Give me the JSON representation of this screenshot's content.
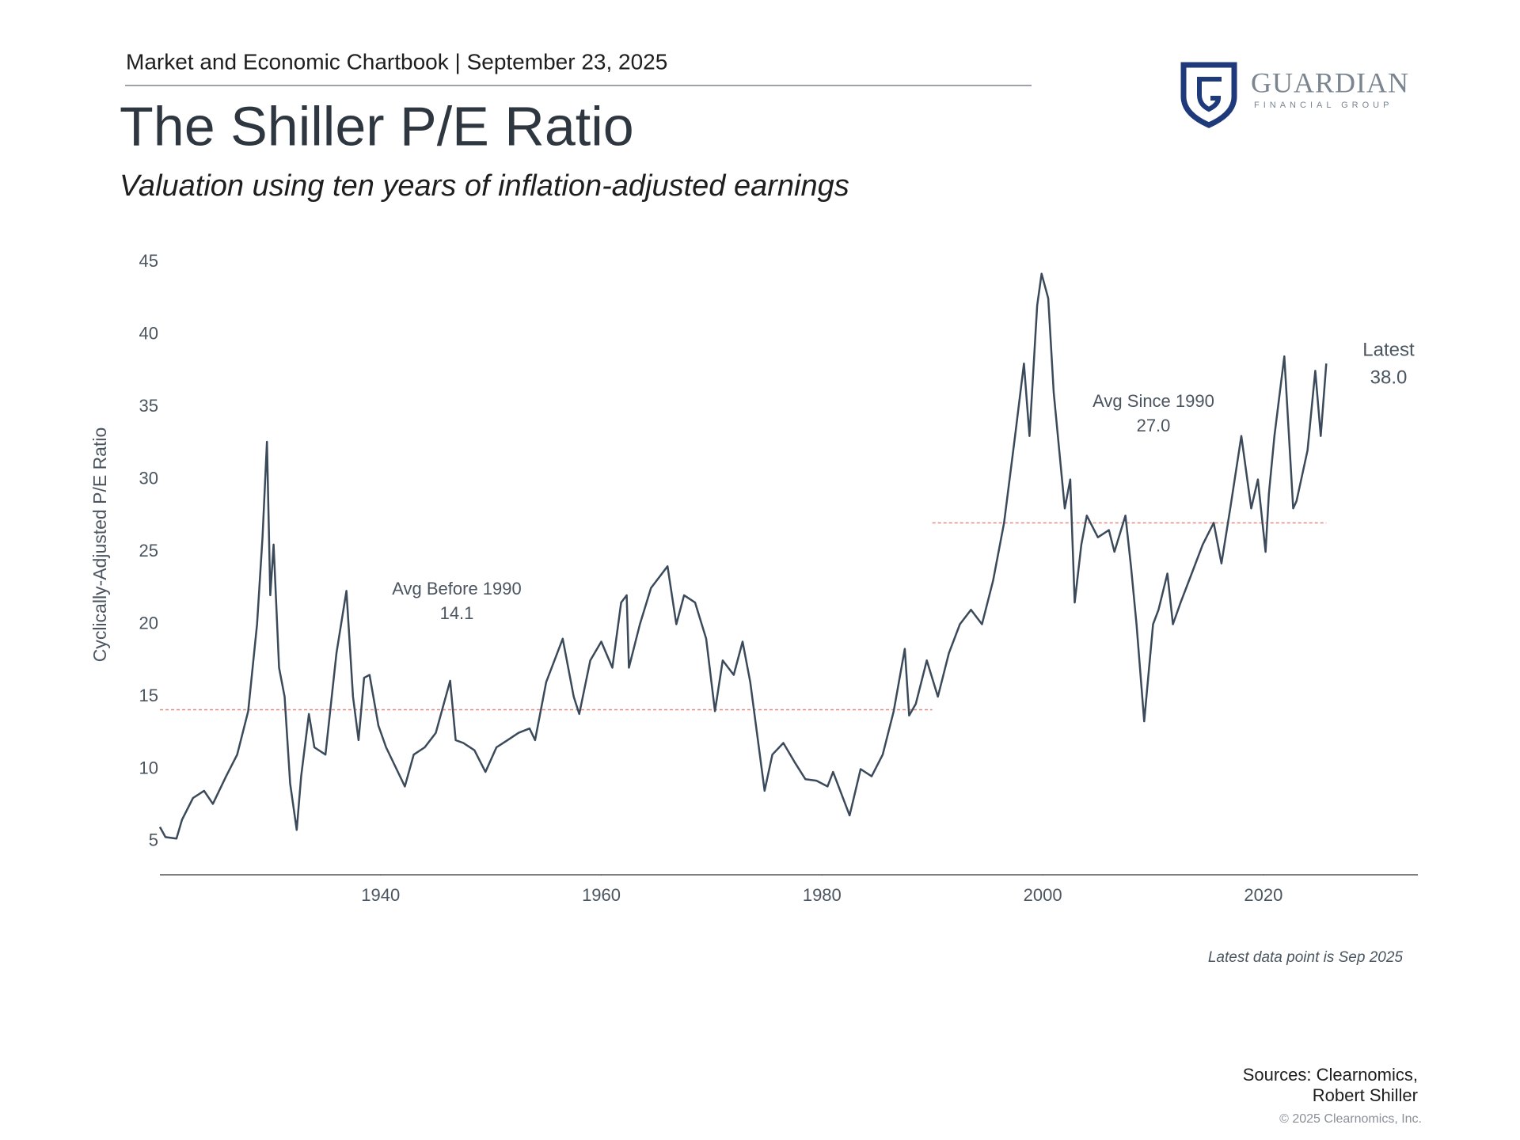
{
  "chart_data": {
    "type": "line",
    "header": "Market and Economic Chartbook | September 23, 2025",
    "title": "The Shiller P/E Ratio",
    "subtitle": "Valuation using ten years of inflation-adjusted earnings",
    "logo": {
      "name": "GUARDIAN",
      "tagline": "FINANCIAL GROUP"
    },
    "y_label": "Cyclically-Adjusted P/E Ratio",
    "note": "Latest data point is Sep 2025",
    "sources": [
      "Sources: Clearnomics,",
      "Robert Shiller"
    ],
    "copyright": "© 2025 Clearnomics, Inc.",
    "xlim": [
      1920,
      2034
    ],
    "xticks": [
      1940,
      1960,
      1980,
      2000,
      2020
    ],
    "ylim": [
      2.7,
      45.5
    ],
    "yticks": [
      5,
      10,
      15,
      20,
      25,
      30,
      35,
      40,
      45
    ],
    "x": [
      1920.0,
      1920.5,
      1921.5,
      1922,
      1923,
      1924,
      1924.8,
      1926,
      1927,
      1928,
      1928.8,
      1929.3,
      1929.7,
      1930.0,
      1930.3,
      1930.8,
      1931.3,
      1931.8,
      1932.4,
      1932.8,
      1933.5,
      1934,
      1935,
      1936,
      1936.9,
      1937.5,
      1938,
      1938.5,
      1939,
      1939.8,
      1940.5,
      1942.2,
      1943,
      1944,
      1945,
      1946.3,
      1946.8,
      1947.5,
      1948.5,
      1949.5,
      1950.5,
      1951.5,
      1952.5,
      1953.5,
      1954,
      1955,
      1956.5,
      1957.5,
      1958,
      1959,
      1960,
      1961,
      1961.8,
      1962.3,
      1962.5,
      1963.5,
      1964.5,
      1965.5,
      1966,
      1966.8,
      1967.5,
      1968.5,
      1969.5,
      1970.3,
      1971,
      1972,
      1972.8,
      1973.5,
      1974.8,
      1975.5,
      1976.5,
      1977.5,
      1978.5,
      1979.5,
      1980.5,
      1981,
      1982.5,
      1983.5,
      1984.5,
      1985.5,
      1986.5,
      1987.5,
      1987.9,
      1988.5,
      1989.5,
      1990.5,
      1991.5,
      1992.5,
      1993.5,
      1994.5,
      1995.5,
      1996.5,
      1997.5,
      1998.3,
      1998.8,
      1999.5,
      1999.9,
      2000.5,
      2001,
      2001.5,
      2002,
      2002.5,
      2002.9,
      2003.5,
      2004,
      2005,
      2006,
      2006.5,
      2007.5,
      2008,
      2008.5,
      2009.2,
      2010,
      2010.5,
      2011.3,
      2011.8,
      2012.5,
      2013.5,
      2014.5,
      2015.5,
      2016.2,
      2017,
      2018,
      2018.9,
      2019.5,
      2020.2,
      2020.5,
      2021,
      2021.9,
      2022.7,
      2023,
      2024,
      2024.7,
      2025.2,
      2025.7
    ],
    "series": [
      {
        "name": "Shiller P/E",
        "color": "#3b4a5a",
        "values": [
          6.0,
          5.3,
          5.2,
          6.5,
          8.0,
          8.5,
          7.6,
          9.5,
          11.0,
          14.0,
          20.0,
          26,
          32.6,
          22,
          25.5,
          17,
          15,
          9,
          5.8,
          9.5,
          13.8,
          11.5,
          11,
          18,
          22.3,
          15,
          12,
          16.3,
          16.5,
          13,
          11.5,
          8.8,
          11,
          11.5,
          12.5,
          16.1,
          12,
          11.8,
          11.3,
          9.8,
          11.5,
          12,
          12.5,
          12.8,
          12,
          16,
          19,
          15,
          13.8,
          17.5,
          18.8,
          17,
          21.5,
          22,
          17,
          20,
          22.5,
          23.5,
          24,
          20,
          22,
          21.5,
          19,
          14,
          17.5,
          16.5,
          18.8,
          16,
          8.5,
          11,
          11.8,
          10.5,
          9.3,
          9.2,
          8.8,
          9.8,
          6.8,
          10,
          9.5,
          11,
          14,
          18.3,
          13.7,
          14.5,
          17.5,
          15,
          18,
          20,
          21,
          20,
          23,
          27,
          33,
          38,
          33,
          42,
          44.2,
          42.5,
          36,
          32,
          28,
          30,
          21.5,
          25.5,
          27.5,
          26,
          26.5,
          25,
          27.5,
          24,
          20,
          13.3,
          20,
          21,
          23.5,
          20,
          21.5,
          23.5,
          25.5,
          27,
          24.2,
          28,
          33,
          28,
          30,
          25,
          29,
          33,
          38.5,
          28,
          28.5,
          32,
          37.5,
          33,
          38
        ]
      }
    ],
    "reference_lines": [
      {
        "label": "Avg Before 1990",
        "value": 14.1,
        "x": [
          1920,
          1990
        ],
        "color": "#e08a80"
      },
      {
        "label": "Avg Since 1990",
        "value": 27.0,
        "value_label": "27.0",
        "x": [
          1990,
          2025.7
        ],
        "color": "#e08a80"
      }
    ],
    "latest": {
      "label": "Latest",
      "value": 38,
      "value_label": "38.0"
    }
  }
}
